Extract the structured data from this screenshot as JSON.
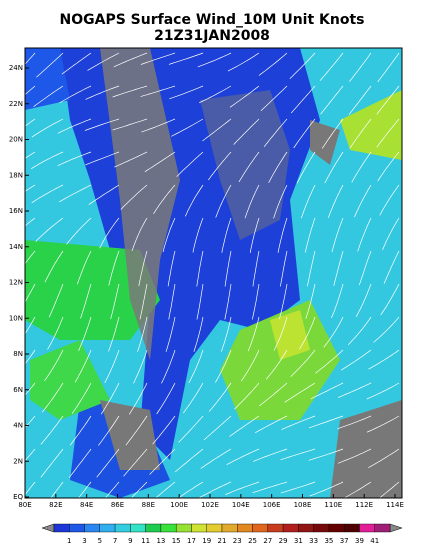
{
  "header": {
    "title": "NOGAPS Surface Wind_10M Unit Knots",
    "time": "21Z31JAN2008"
  },
  "map": {
    "lat_labels": [
      "24N",
      "22N",
      "20N",
      "18N",
      "16N",
      "14N",
      "12N",
      "10N",
      "8N",
      "6N",
      "4N",
      "2N",
      "EQ"
    ],
    "lon_labels": [
      "80E",
      "82E",
      "84E",
      "86E",
      "88E",
      "100E",
      "102E",
      "104E",
      "106E",
      "108E",
      "110E",
      "112E",
      "114E"
    ]
  },
  "colorbar": {
    "labels": [
      "1",
      "3",
      "5",
      "7",
      "9",
      "11",
      "13",
      "15",
      "17",
      "19",
      "21",
      "23",
      "25",
      "27",
      "29",
      "31",
      "33",
      "35",
      "37",
      "39",
      "41"
    ],
    "colors": [
      "#1c36d8",
      "#1e58e8",
      "#2a86f0",
      "#30aef0",
      "#34cce0",
      "#34e2c8",
      "#20cc50",
      "#38e23a",
      "#96e232",
      "#d0e232",
      "#e2cc30",
      "#e2aa2c",
      "#e2881e",
      "#e2661e",
      "#c83c1e",
      "#b01e1e",
      "#921414",
      "#760a0a",
      "#620000",
      "#4e0000",
      "#e21e96",
      "#a01e78"
    ]
  }
}
